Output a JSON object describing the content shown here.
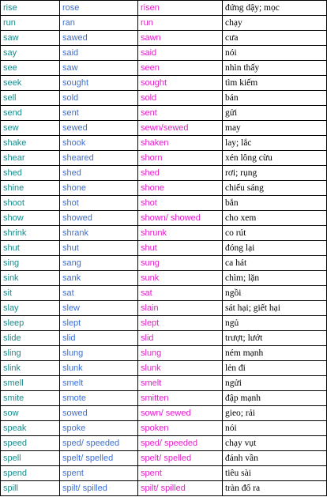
{
  "colors": {
    "base_form": "#1a8a8a",
    "past_simple": "#3a6fd8",
    "past_participle": "#e020c8",
    "meaning": "#000000"
  },
  "rows": [
    [
      "rise",
      "rose",
      "risen",
      "đứng dậy; mọc"
    ],
    [
      "run",
      "ran",
      "run",
      "chạy"
    ],
    [
      "saw",
      "sawed",
      "sawn",
      "cưa"
    ],
    [
      "say",
      "said",
      "said",
      "nói"
    ],
    [
      "see",
      "saw",
      "seen",
      "nhìn thấy"
    ],
    [
      "seek",
      "sought",
      "sought",
      "tìm kiếm"
    ],
    [
      "sell",
      "sold",
      "sold",
      "bán"
    ],
    [
      "send",
      "sent",
      "sent",
      "gửi"
    ],
    [
      "sew",
      "sewed",
      "sewn/sewed",
      "may"
    ],
    [
      "shake",
      "shook",
      "shaken",
      "lay; lắc"
    ],
    [
      "shear",
      "sheared",
      "shorn",
      "xén lông cừu"
    ],
    [
      "shed",
      "shed",
      "shed",
      "rơi; rụng"
    ],
    [
      "shine",
      "shone",
      "shone",
      "chiếu sáng"
    ],
    [
      "shoot",
      "shot",
      "shot",
      "bắn"
    ],
    [
      "show",
      "showed",
      "shown/ showed",
      "cho xem"
    ],
    [
      "shrink",
      "shrank",
      "shrunk",
      "co rút"
    ],
    [
      "shut",
      "shut",
      "shut",
      "đóng lại"
    ],
    [
      "sing",
      "sang",
      "sung",
      "ca hát"
    ],
    [
      "sink",
      "sank",
      "sunk",
      "chìm; lặn"
    ],
    [
      "sit",
      "sat",
      "sat",
      "ngồi"
    ],
    [
      "slay",
      "slew",
      "slain",
      "sát hại; giết hại"
    ],
    [
      "sleep",
      "slept",
      "slept",
      "ngủ"
    ],
    [
      "slide",
      "slid",
      "slid",
      "trượt; lướt"
    ],
    [
      "sling",
      "slung",
      "slung",
      "ném mạnh"
    ],
    [
      "slink",
      "slunk",
      "slunk",
      "lẻn đi"
    ],
    [
      "smell",
      "smelt",
      "smelt",
      "ngửi"
    ],
    [
      "smite",
      "smote",
      "smitten",
      "đập mạnh"
    ],
    [
      "sow",
      "sowed",
      "sown/ sewed",
      "gieo; rải"
    ],
    [
      "speak",
      "spoke",
      "spoken",
      "nói"
    ],
    [
      "speed",
      "sped/ speeded",
      "sped/ speeded",
      "chạy vụt"
    ],
    [
      "spell",
      "spelt/ spelled",
      "spelt/ spelled",
      "đánh vần"
    ],
    [
      "spend",
      "spent",
      "spent",
      "tiêu sài"
    ],
    [
      "spill",
      "spilt/ spilled",
      "spilt/ spilled",
      "tràn đổ ra"
    ]
  ]
}
